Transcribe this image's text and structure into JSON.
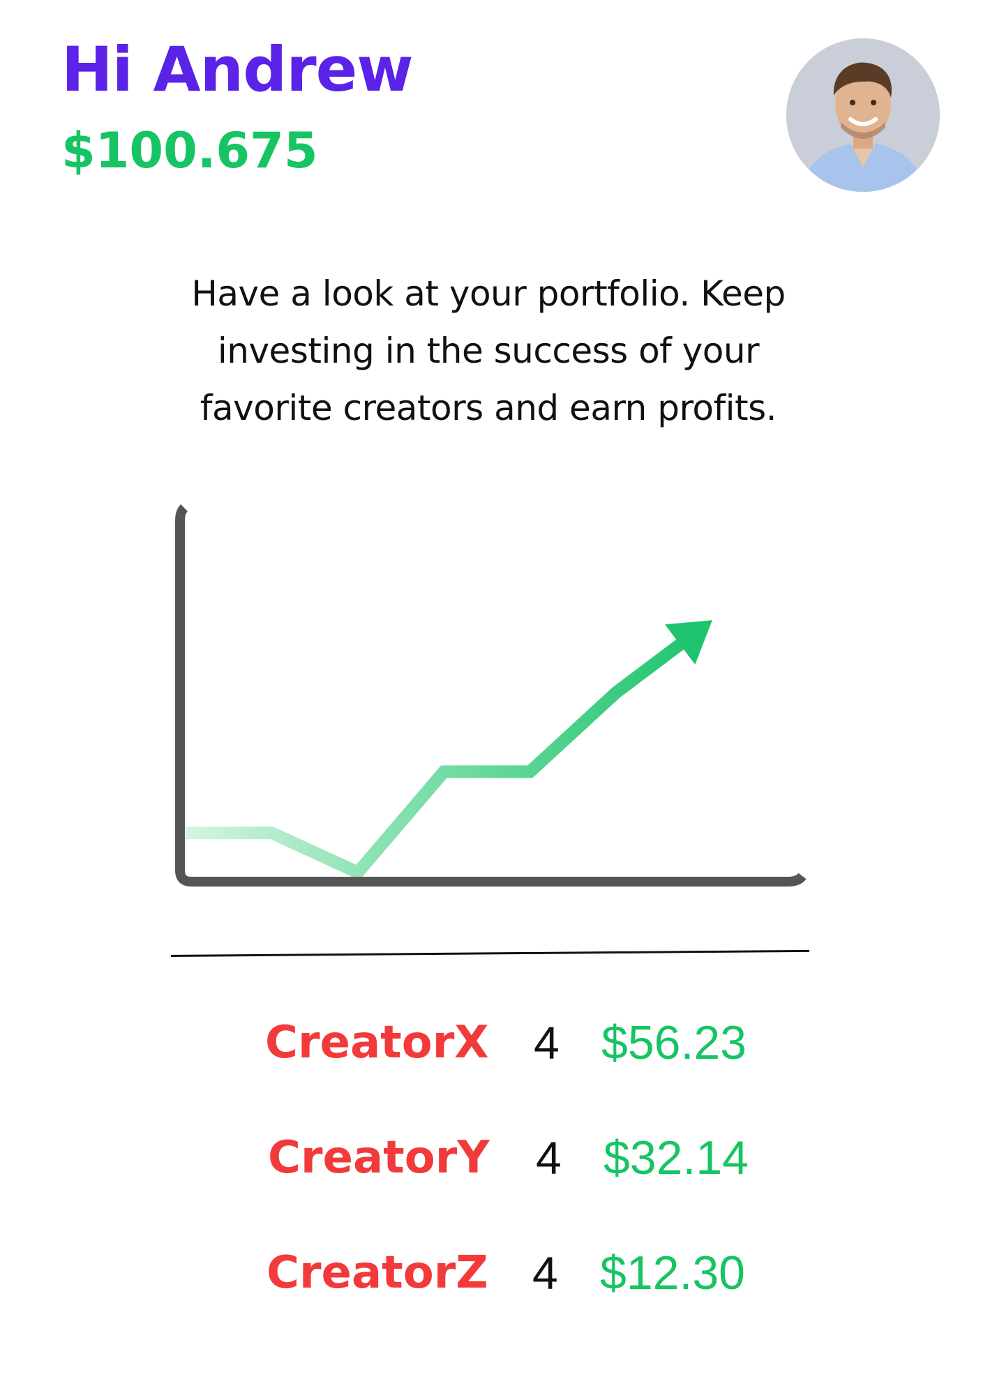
{
  "header": {
    "greeting": "Hi Andrew",
    "balance": "$100.675"
  },
  "avatar": {
    "icon": "user-avatar-photo"
  },
  "intro": {
    "text": "Have a look at your portfolio. Keep investing in the success of your favorite creators and earn profits."
  },
  "chart_data": {
    "type": "line",
    "title": "",
    "xlabel": "",
    "ylabel": "",
    "grid": false,
    "x": [
      0,
      1,
      2,
      3,
      4,
      5,
      6
    ],
    "values": [
      1.2,
      1.2,
      0.1,
      2.9,
      2.9,
      5.1,
      6.9
    ],
    "xlim": [
      0,
      7
    ],
    "ylim": [
      0,
      10
    ],
    "line_color": "#1ec46d",
    "end_marker": "arrow"
  },
  "creators": [
    {
      "name": "CreatorX",
      "count": "4",
      "value": "$56.23"
    },
    {
      "name": "CreatorY",
      "count": "4",
      "value": "$32.14"
    },
    {
      "name": "CreatorZ",
      "count": "4",
      "value": "$12.30"
    }
  ],
  "colors": {
    "greeting": "#5b22e8",
    "balance": "#17c463",
    "creator_name": "#f23a3a",
    "creator_value": "#17c463",
    "axis": "#555555"
  }
}
